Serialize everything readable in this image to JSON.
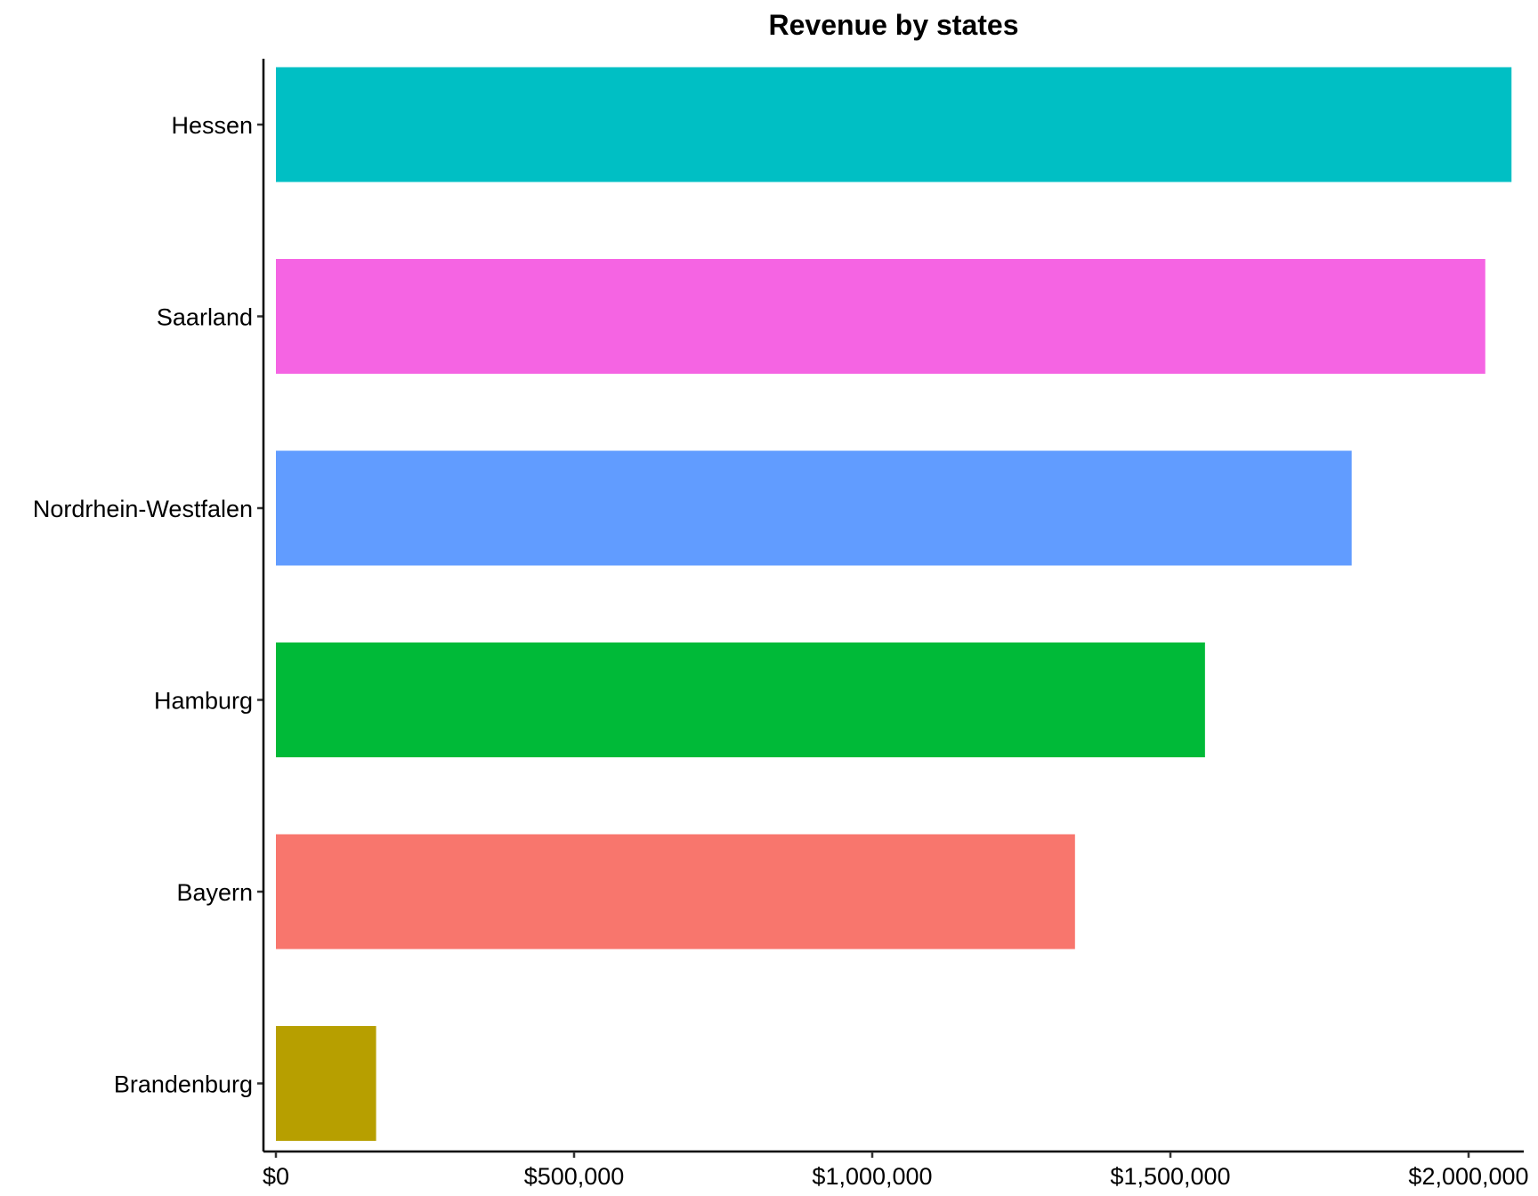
{
  "chart_data": {
    "type": "bar",
    "orientation": "horizontal",
    "title": "Revenue by states",
    "xlabel": "",
    "ylabel": "",
    "categories": [
      "Hessen",
      "Saarland",
      "Nordrhein-Westfalen",
      "Hamburg",
      "Bayern",
      "Brandenburg"
    ],
    "values": [
      2072000,
      2028000,
      1804000,
      1558000,
      1340000,
      168000
    ],
    "colors": [
      "#00BFC4",
      "#F564E3",
      "#619CFF",
      "#00BA38",
      "#F8766D",
      "#B79F00"
    ],
    "xlim": [
      0,
      2072000
    ],
    "xticks": [
      0,
      500000,
      1000000,
      1500000,
      2000000
    ],
    "xtick_labels": [
      "$0",
      "$500,000",
      "$1,000,000",
      "$1,500,000",
      "$2,000,000"
    ],
    "grid": false,
    "legend": "none"
  }
}
